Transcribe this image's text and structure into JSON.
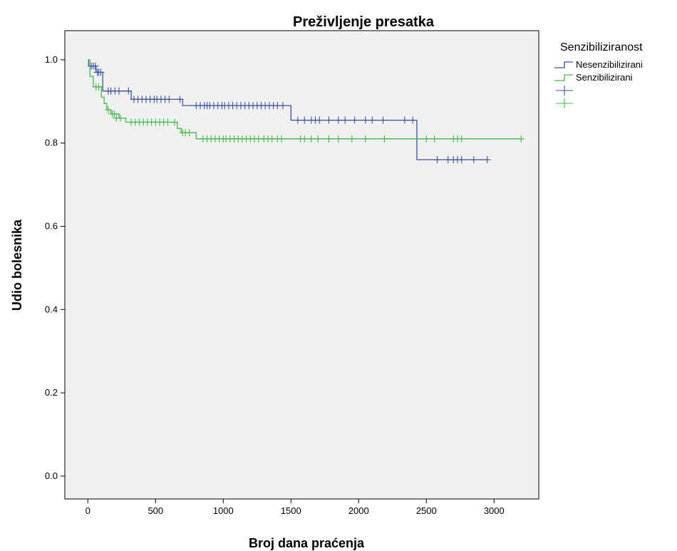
{
  "chart_data": {
    "type": "line",
    "subtype": "kaplan-meier",
    "title": "Preživljenje presatka",
    "xlabel": "Broj dana praćenja",
    "ylabel": "Udio bolesnika",
    "xlim": [
      -170,
      3330
    ],
    "ylim": [
      -0.055,
      1.07
    ],
    "x_ticks": [
      0,
      500,
      1000,
      1500,
      2000,
      2500,
      3000
    ],
    "y_ticks": [
      0.0,
      0.2,
      0.4,
      0.6,
      0.8,
      1.0
    ],
    "y_tick_labels": [
      "0.0",
      "0.2",
      "0.4",
      "0.6",
      "0.8",
      "1.0"
    ],
    "grid": false,
    "plot_background": "#f0f0f0",
    "legend": {
      "title": "Senzibiliziranost",
      "placement": "right",
      "entries": [
        {
          "label": "Nesenzibilizirani",
          "color": "#3a52a0",
          "marker": "line"
        },
        {
          "label": "Senzibilizirani",
          "color": "#43b84a",
          "marker": "line"
        },
        {
          "label": "",
          "color": "#3a52a0",
          "marker": "censor"
        },
        {
          "label": "",
          "color": "#43b84a",
          "marker": "censor"
        }
      ]
    },
    "series": [
      {
        "name": "Nesenzibilizirani",
        "color": "#3a52a0",
        "steps": [
          [
            0,
            1.0
          ],
          [
            5,
            0.985
          ],
          [
            60,
            0.97
          ],
          [
            110,
            0.925
          ],
          [
            320,
            0.905
          ],
          [
            700,
            0.89
          ],
          [
            1500,
            0.855
          ],
          [
            2430,
            0.76
          ],
          [
            2950,
            0.76
          ]
        ],
        "censored": [
          [
            25,
            0.985
          ],
          [
            40,
            0.985
          ],
          [
            55,
            0.985
          ],
          [
            70,
            0.97
          ],
          [
            80,
            0.97
          ],
          [
            95,
            0.97
          ],
          [
            150,
            0.925
          ],
          [
            170,
            0.925
          ],
          [
            200,
            0.925
          ],
          [
            230,
            0.925
          ],
          [
            300,
            0.925
          ],
          [
            340,
            0.905
          ],
          [
            370,
            0.905
          ],
          [
            400,
            0.905
          ],
          [
            430,
            0.905
          ],
          [
            460,
            0.905
          ],
          [
            490,
            0.905
          ],
          [
            510,
            0.905
          ],
          [
            540,
            0.905
          ],
          [
            570,
            0.905
          ],
          [
            600,
            0.905
          ],
          [
            680,
            0.905
          ],
          [
            800,
            0.89
          ],
          [
            830,
            0.89
          ],
          [
            860,
            0.89
          ],
          [
            880,
            0.89
          ],
          [
            900,
            0.89
          ],
          [
            930,
            0.89
          ],
          [
            960,
            0.89
          ],
          [
            990,
            0.89
          ],
          [
            1010,
            0.89
          ],
          [
            1040,
            0.89
          ],
          [
            1070,
            0.89
          ],
          [
            1100,
            0.89
          ],
          [
            1130,
            0.89
          ],
          [
            1160,
            0.89
          ],
          [
            1190,
            0.89
          ],
          [
            1220,
            0.89
          ],
          [
            1250,
            0.89
          ],
          [
            1280,
            0.89
          ],
          [
            1310,
            0.89
          ],
          [
            1340,
            0.89
          ],
          [
            1370,
            0.89
          ],
          [
            1400,
            0.89
          ],
          [
            1440,
            0.89
          ],
          [
            1550,
            0.855
          ],
          [
            1600,
            0.855
          ],
          [
            1650,
            0.855
          ],
          [
            1680,
            0.855
          ],
          [
            1710,
            0.855
          ],
          [
            1780,
            0.855
          ],
          [
            1850,
            0.855
          ],
          [
            1900,
            0.855
          ],
          [
            1970,
            0.855
          ],
          [
            2050,
            0.855
          ],
          [
            2100,
            0.855
          ],
          [
            2180,
            0.855
          ],
          [
            2340,
            0.855
          ],
          [
            2400,
            0.855
          ],
          [
            2580,
            0.76
          ],
          [
            2660,
            0.76
          ],
          [
            2700,
            0.76
          ],
          [
            2730,
            0.76
          ],
          [
            2760,
            0.76
          ],
          [
            2850,
            0.76
          ],
          [
            2950,
            0.76
          ]
        ]
      },
      {
        "name": "Senzibilizirani",
        "color": "#43b84a",
        "steps": [
          [
            0,
            1.0
          ],
          [
            15,
            0.96
          ],
          [
            40,
            0.935
          ],
          [
            100,
            0.91
          ],
          [
            120,
            0.895
          ],
          [
            140,
            0.88
          ],
          [
            170,
            0.87
          ],
          [
            230,
            0.86
          ],
          [
            280,
            0.85
          ],
          [
            660,
            0.835
          ],
          [
            690,
            0.825
          ],
          [
            800,
            0.81
          ],
          [
            3200,
            0.81
          ]
        ],
        "censored": [
          [
            60,
            0.935
          ],
          [
            80,
            0.935
          ],
          [
            150,
            0.88
          ],
          [
            180,
            0.87
          ],
          [
            195,
            0.87
          ],
          [
            210,
            0.86
          ],
          [
            240,
            0.86
          ],
          [
            320,
            0.85
          ],
          [
            350,
            0.85
          ],
          [
            380,
            0.85
          ],
          [
            410,
            0.85
          ],
          [
            440,
            0.85
          ],
          [
            470,
            0.85
          ],
          [
            500,
            0.85
          ],
          [
            530,
            0.85
          ],
          [
            560,
            0.85
          ],
          [
            590,
            0.85
          ],
          [
            640,
            0.85
          ],
          [
            700,
            0.825
          ],
          [
            720,
            0.825
          ],
          [
            750,
            0.825
          ],
          [
            850,
            0.81
          ],
          [
            880,
            0.81
          ],
          [
            910,
            0.81
          ],
          [
            940,
            0.81
          ],
          [
            970,
            0.81
          ],
          [
            1000,
            0.81
          ],
          [
            1020,
            0.81
          ],
          [
            1050,
            0.81
          ],
          [
            1080,
            0.81
          ],
          [
            1110,
            0.81
          ],
          [
            1140,
            0.81
          ],
          [
            1170,
            0.81
          ],
          [
            1200,
            0.81
          ],
          [
            1230,
            0.81
          ],
          [
            1260,
            0.81
          ],
          [
            1300,
            0.81
          ],
          [
            1330,
            0.81
          ],
          [
            1360,
            0.81
          ],
          [
            1400,
            0.81
          ],
          [
            1430,
            0.81
          ],
          [
            1570,
            0.81
          ],
          [
            1600,
            0.81
          ],
          [
            1650,
            0.81
          ],
          [
            1700,
            0.81
          ],
          [
            1780,
            0.81
          ],
          [
            1850,
            0.81
          ],
          [
            1950,
            0.81
          ],
          [
            2050,
            0.81
          ],
          [
            2190,
            0.81
          ],
          [
            2500,
            0.81
          ],
          [
            2560,
            0.81
          ],
          [
            2700,
            0.81
          ],
          [
            2730,
            0.81
          ],
          [
            2760,
            0.81
          ],
          [
            3200,
            0.81
          ]
        ]
      }
    ]
  }
}
